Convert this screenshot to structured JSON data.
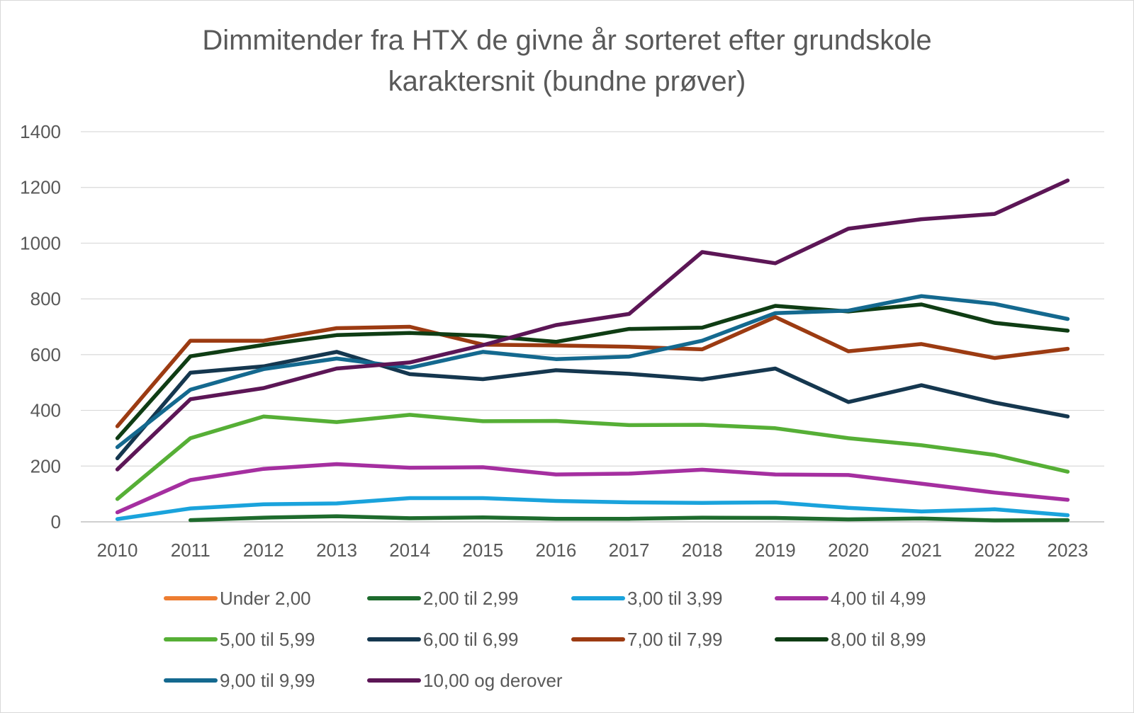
{
  "chart_data": {
    "type": "line",
    "title_lines": [
      "Dimmitender fra HTX de givne år sorteret efter grundskole",
      "karaktersnit (bundne prøver)"
    ],
    "xlabel": "",
    "ylabel": "",
    "x": [
      "2010",
      "2011",
      "2012",
      "2013",
      "2014",
      "2015",
      "2016",
      "2017",
      "2018",
      "2019",
      "2020",
      "2021",
      "2022",
      "2023"
    ],
    "ylim": [
      0,
      1400
    ],
    "yticks": [
      0,
      200,
      400,
      600,
      800,
      1000,
      1200,
      1400
    ],
    "grid": true,
    "legend_position": "bottom",
    "series": [
      {
        "name": "Under 2,00",
        "color": "#ED7D31",
        "values": [
          null,
          null,
          null,
          null,
          null,
          null,
          null,
          null,
          null,
          null,
          null,
          null,
          null,
          null
        ]
      },
      {
        "name": "2,00 til 2,99",
        "color": "#1E6B2D",
        "values": [
          null,
          6,
          15,
          20,
          13,
          16,
          11,
          11,
          15,
          14,
          9,
          12,
          5,
          6
        ]
      },
      {
        "name": "3,00 til 3,99",
        "color": "#1AA3DC",
        "values": [
          10,
          48,
          63,
          66,
          85,
          85,
          75,
          70,
          68,
          70,
          50,
          37,
          45,
          24
        ]
      },
      {
        "name": "4,00 til 4,99",
        "color": "#A52FA0",
        "values": [
          34,
          150,
          190,
          207,
          194,
          196,
          170,
          173,
          187,
          170,
          168,
          137,
          105,
          79
        ]
      },
      {
        "name": "5,00 til 5,99",
        "color": "#56AF36",
        "values": [
          82,
          300,
          378,
          358,
          384,
          361,
          362,
          347,
          348,
          336,
          300,
          275,
          240,
          180
        ]
      },
      {
        "name": "6,00 til 6,99",
        "color": "#15374F",
        "values": [
          228,
          535,
          558,
          610,
          530,
          512,
          544,
          531,
          511,
          550,
          430,
          490,
          428,
          378
        ]
      },
      {
        "name": "7,00 til 7,99",
        "color": "#9C3B12",
        "values": [
          343,
          650,
          650,
          695,
          700,
          636,
          633,
          628,
          619,
          735,
          612,
          638,
          588,
          621
        ]
      },
      {
        "name": "8,00 til 8,99",
        "color": "#0F3D14",
        "values": [
          300,
          594,
          635,
          670,
          678,
          668,
          646,
          692,
          697,
          775,
          755,
          780,
          714,
          686
        ]
      },
      {
        "name": "9,00 til 9,99",
        "color": "#14698F",
        "values": [
          268,
          474,
          548,
          586,
          553,
          610,
          584,
          593,
          650,
          749,
          758,
          810,
          782,
          728
        ]
      },
      {
        "name": "10,00 og derover",
        "color": "#5C1656",
        "values": [
          188,
          440,
          480,
          550,
          572,
          634,
          706,
          746,
          968,
          928,
          1052,
          1086,
          1105,
          1225
        ]
      }
    ]
  }
}
